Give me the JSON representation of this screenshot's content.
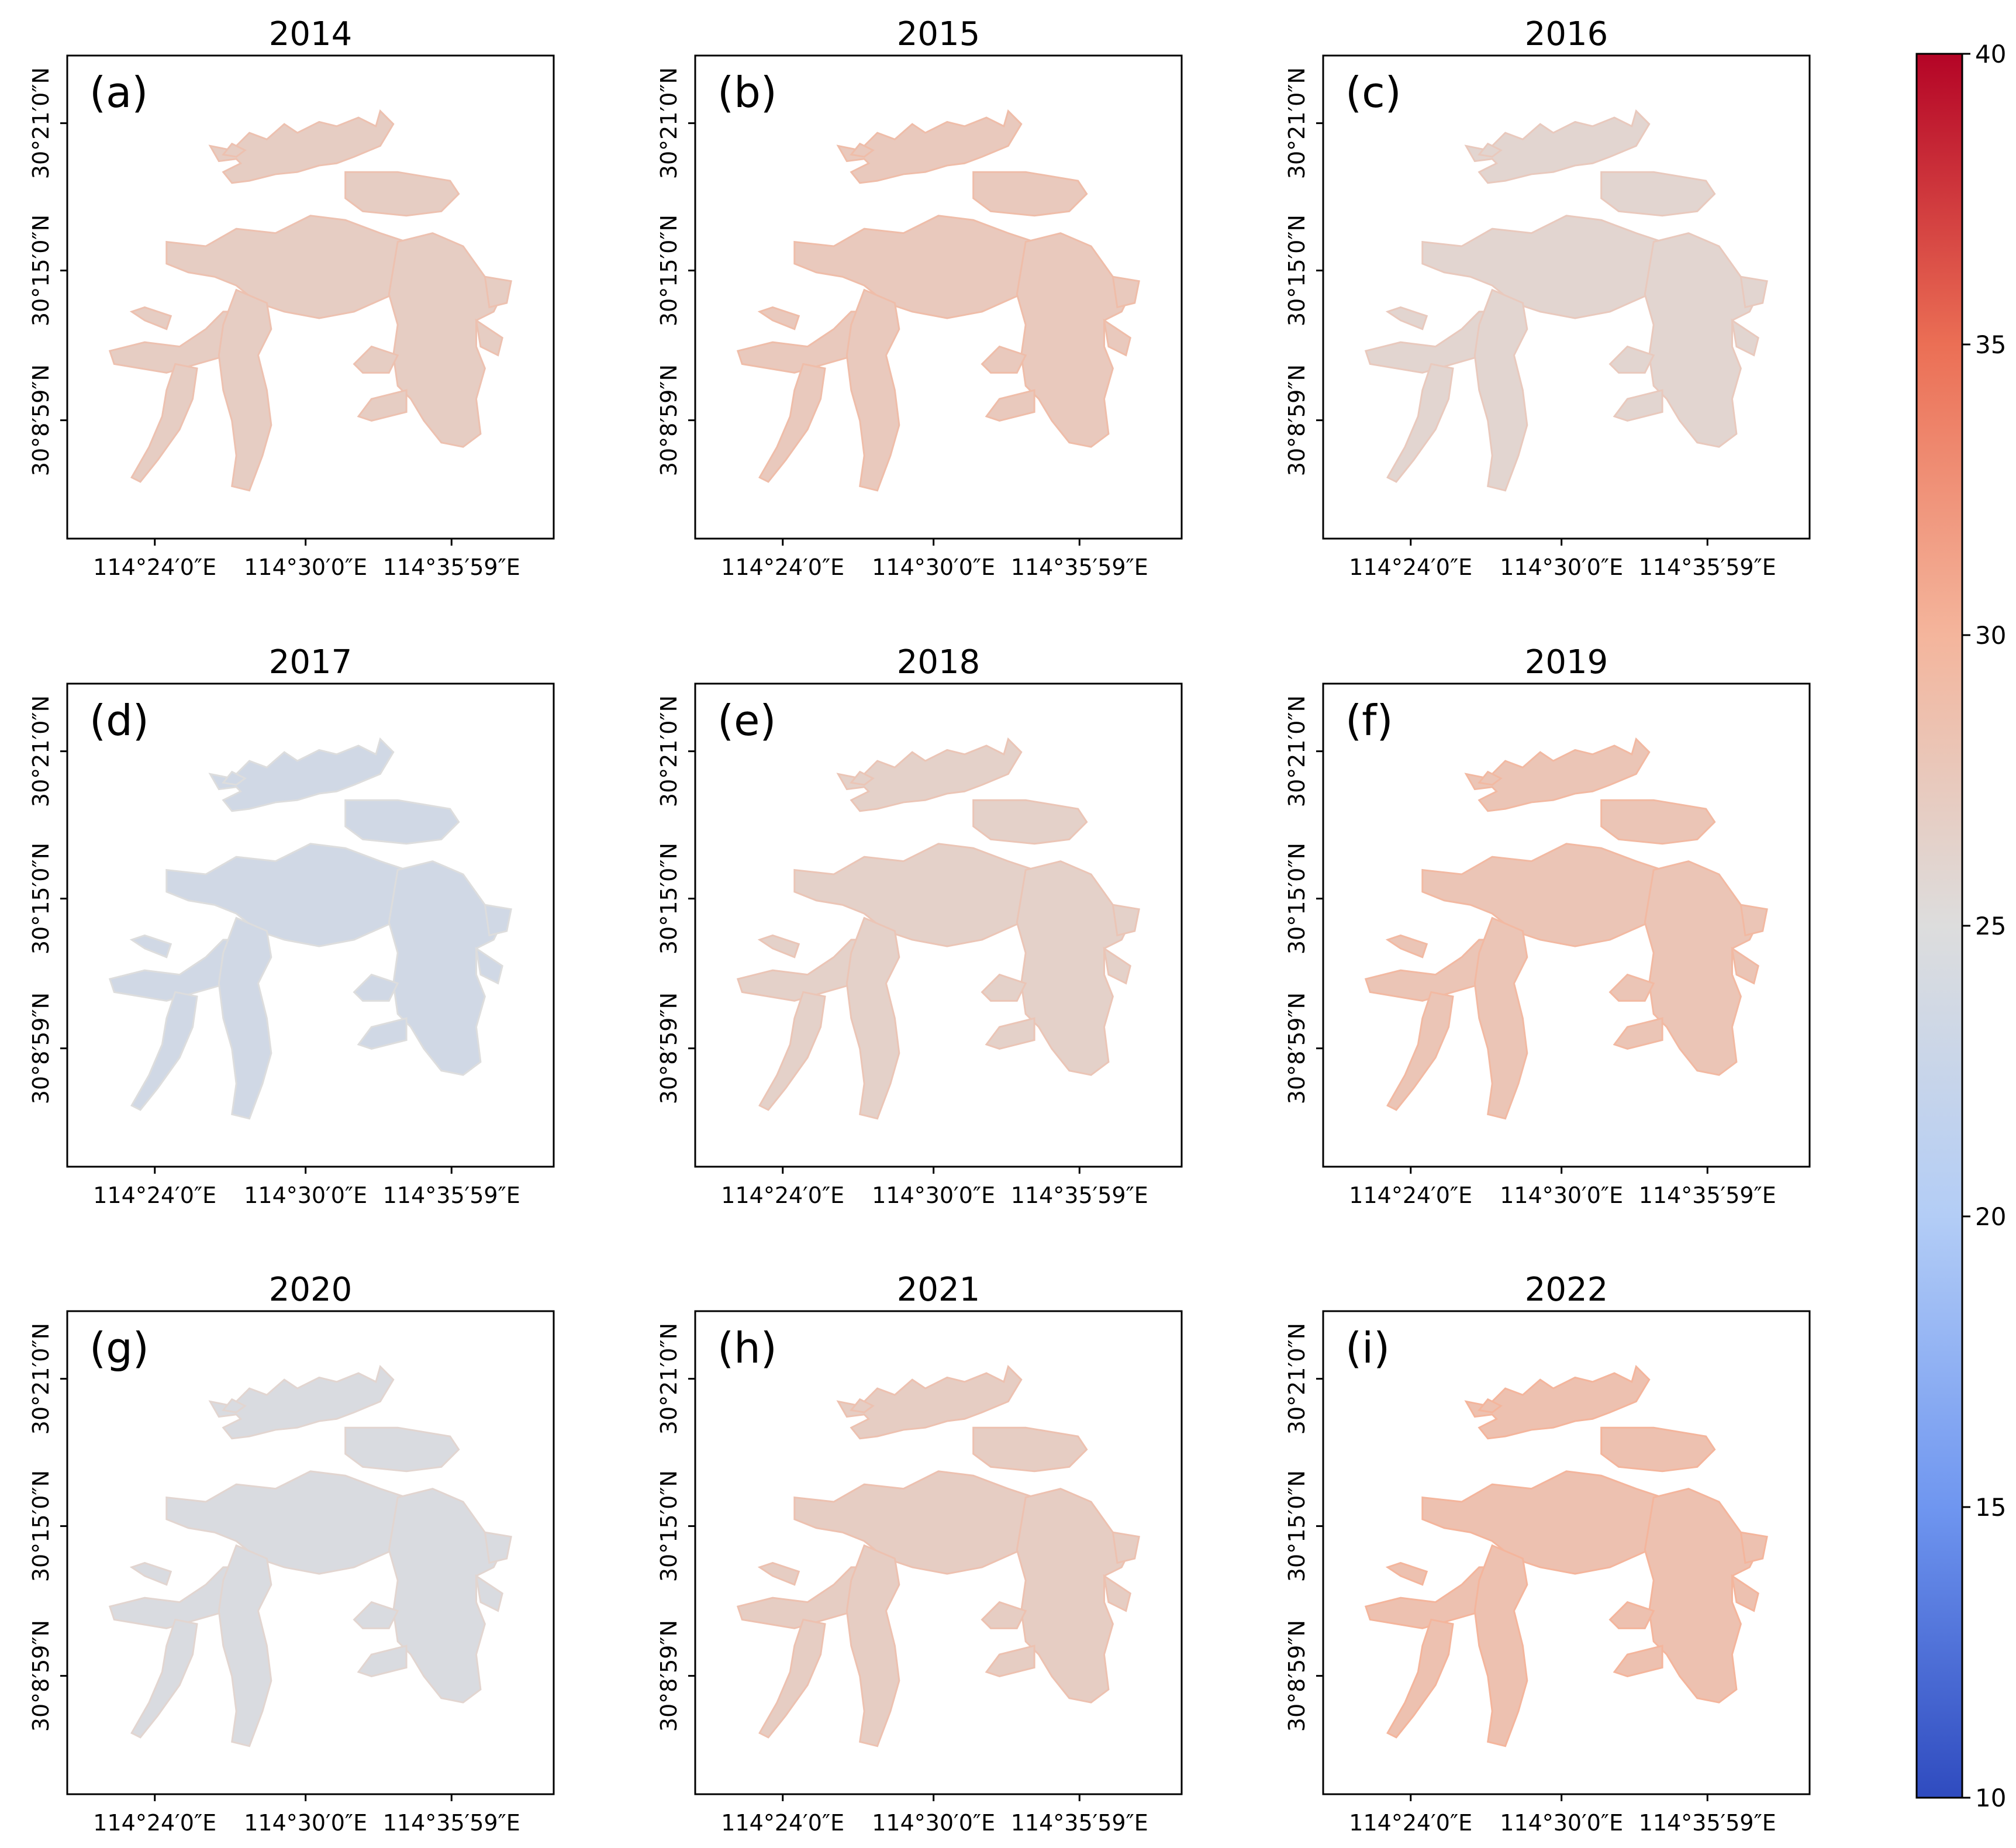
{
  "figure": {
    "colorbar": {
      "min": 10,
      "max": 40,
      "ticks": [
        "10",
        "15",
        "20",
        "25",
        "30",
        "35",
        "40"
      ],
      "colors": [
        "#2f4bbf",
        "#6f96f0",
        "#b3cdf6",
        "#dddddd",
        "#f4b59c",
        "#eb6f55",
        "#b40426"
      ]
    },
    "x_ticks": [
      "114°24′0″E",
      "114°30′0″E",
      "114°35′59″E"
    ],
    "y_ticks": [
      "30°21′0″N",
      "30°15′0″N",
      "30°8′59″N"
    ],
    "panels": [
      {
        "year": "2014",
        "letter": "(a)",
        "mean_temp": 27.0
      },
      {
        "year": "2015",
        "letter": "(b)",
        "mean_temp": 27.5
      },
      {
        "year": "2016",
        "letter": "(c)",
        "mean_temp": 26.0
      },
      {
        "year": "2017",
        "letter": "(d)",
        "mean_temp": 23.5
      },
      {
        "year": "2018",
        "letter": "(e)",
        "mean_temp": 26.5
      },
      {
        "year": "2019",
        "letter": "(f)",
        "mean_temp": 28.0
      },
      {
        "year": "2020",
        "letter": "(g)",
        "mean_temp": 24.5
      },
      {
        "year": "2021",
        "letter": "(h)",
        "mean_temp": 27.0
      },
      {
        "year": "2022",
        "letter": "(i)",
        "mean_temp": 28.5
      }
    ]
  }
}
